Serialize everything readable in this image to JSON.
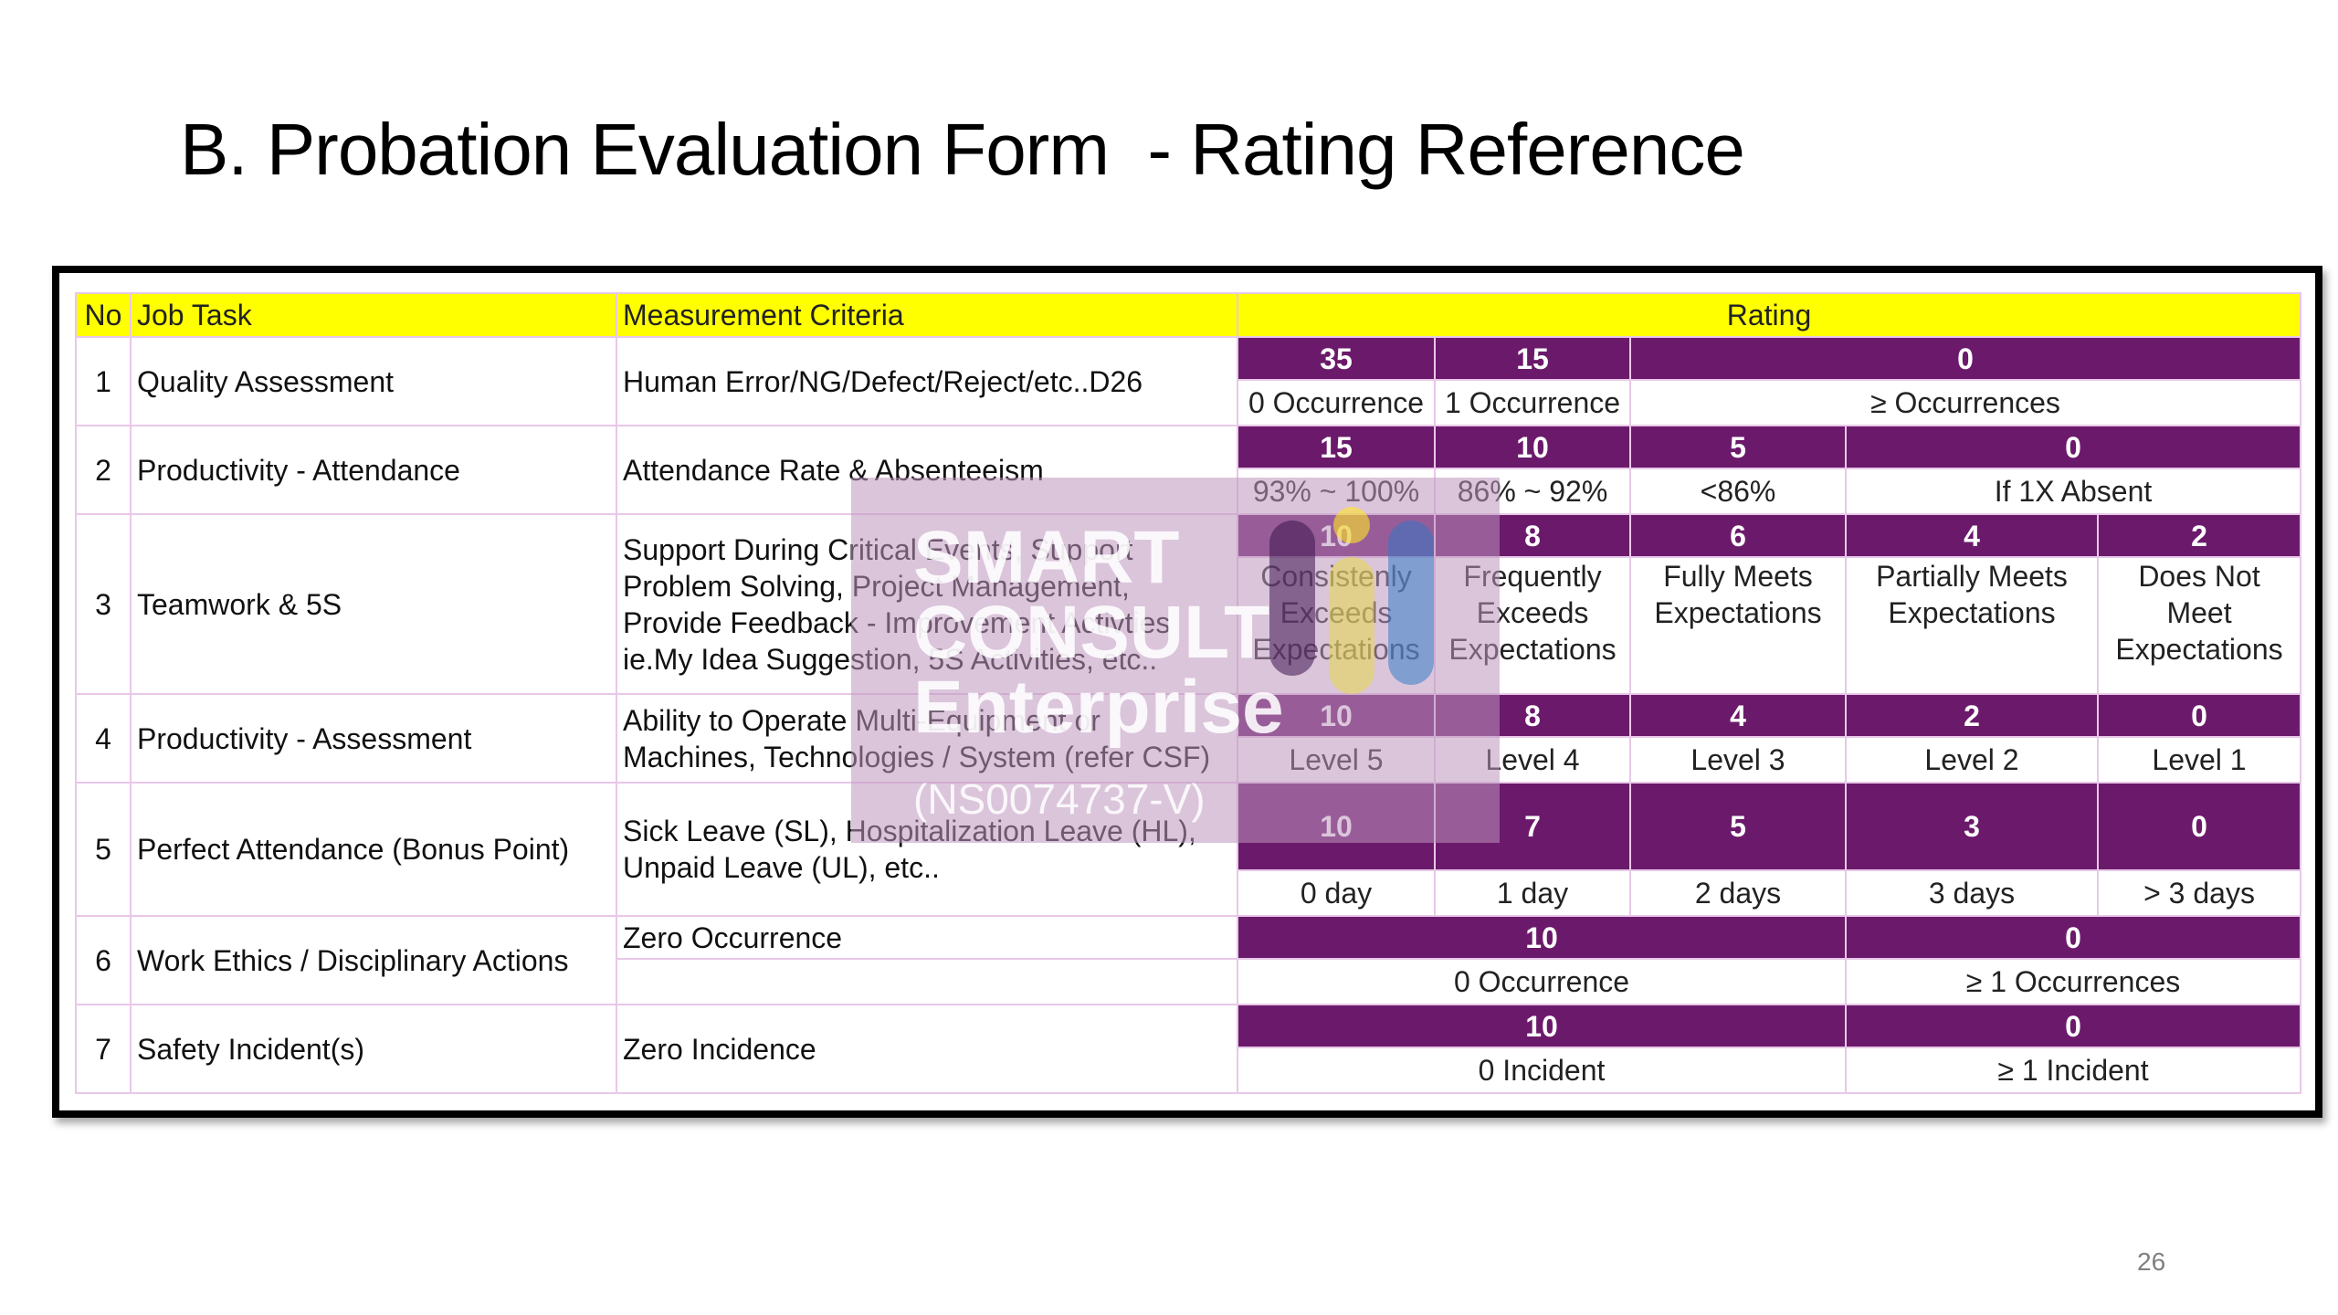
{
  "title": "B. Probation Evaluation Form  - Rating Reference",
  "page_number": "26",
  "colors": {
    "header_fill": "#ffff00",
    "score_fill": "#6b1a6b",
    "border": "#e8c8e8"
  },
  "table": {
    "headers": {
      "no": "No",
      "task": "Job Task",
      "criteria": "Measurement Criteria",
      "rating": "Rating"
    },
    "rows": [
      {
        "no": "1",
        "task": "Quality Assessment",
        "criteria": "Human Error/NG/Defect/Reject/etc..D26",
        "scores": [
          "35",
          "15",
          "0"
        ],
        "labels": [
          "0 Occurrence",
          "1 Occurrence",
          "≥ Occurrences"
        ]
      },
      {
        "no": "2",
        "task": "Productivity - Attendance",
        "criteria": "Attendance Rate & Absenteeism",
        "scores": [
          "15",
          "10",
          "5",
          "0"
        ],
        "labels": [
          "93% ~ 100%",
          "86% ~ 92%",
          "<86%",
          "If 1X Absent"
        ]
      },
      {
        "no": "3",
        "task": "Teamwork & 5S",
        "criteria": "Support During Critical Events, Support Problem Solving, Project Management, Provide Feedback - Improvement Activties ie.My Idea Suggestion, 5S Activities, etc..",
        "scores": [
          "10",
          "8",
          "6",
          "4",
          "2"
        ],
        "labels": [
          "Consistenly Exceeds Expectations",
          "Frequently Exceeds Expectations",
          "Fully Meets Expectations",
          "Partially Meets Expectations",
          "Does Not Meet Expectations"
        ]
      },
      {
        "no": "4",
        "task": "Productivity - Assessment",
        "criteria": "Ability to Operate Multi-Equipment or Machines, Technologies / System (refer CSF)",
        "scores": [
          "10",
          "8",
          "4",
          "2",
          "0"
        ],
        "labels": [
          "Level 5",
          "Level 4",
          "Level 3",
          "Level 2",
          "Level 1"
        ]
      },
      {
        "no": "5",
        "task": "Perfect Attendance (Bonus Point)",
        "criteria": "Sick Leave (SL), Hospitalization Leave (HL), Unpaid Leave (UL), etc..",
        "scores": [
          "10",
          "7",
          "5",
          "3",
          "0"
        ],
        "labels": [
          "0 day",
          "1 day",
          "2 days",
          "3 days",
          "> 3 days"
        ]
      },
      {
        "no": "6",
        "task": "Work Ethics / Disciplinary Actions",
        "criteria": "Zero Occurrence",
        "scores": [
          "10",
          "0"
        ],
        "labels": [
          "0 Occurrence",
          "≥ 1 Occurrences"
        ]
      },
      {
        "no": "7",
        "task": "Safety Incident(s)",
        "criteria": "Zero Incidence",
        "scores": [
          "10",
          "0"
        ],
        "labels": [
          "0 Incident",
          "≥ 1 Incident"
        ]
      }
    ]
  },
  "watermark": {
    "lines": [
      "SMART",
      "CONSULT",
      "Enterprise"
    ],
    "registration": "(NS0074737-V)"
  }
}
